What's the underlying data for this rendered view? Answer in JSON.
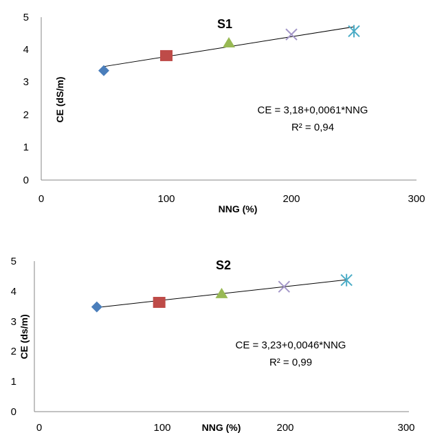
{
  "chart_data": [
    {
      "type": "scatter",
      "title": "S1",
      "xlabel": "NNG (%)",
      "ylabel": "CE (dS/m)",
      "xlim": [
        0,
        300
      ],
      "ylim": [
        0,
        5
      ],
      "xticks": [
        "0",
        "100",
        "200",
        "300"
      ],
      "yticks": [
        "0",
        "1",
        "2",
        "3",
        "4",
        "5"
      ],
      "grid": false,
      "points": [
        {
          "x": 50,
          "y": 3.36,
          "marker": "diamond",
          "color": "#4a7ebb"
        },
        {
          "x": 100,
          "y": 3.82,
          "marker": "square",
          "color": "#be4b48"
        },
        {
          "x": 150,
          "y": 4.22,
          "marker": "triangle",
          "color": "#98b954"
        },
        {
          "x": 200,
          "y": 4.47,
          "marker": "x",
          "color": "#a497c9"
        },
        {
          "x": 250,
          "y": 4.57,
          "marker": "star",
          "color": "#4bacc6"
        }
      ],
      "trendline": {
        "intercept": 3.18,
        "slope": 0.0061,
        "x_start": 50,
        "x_end": 250
      },
      "equation": "CE = 3,18+0,0061*NNG",
      "r2": "R² = 0,94"
    },
    {
      "type": "scatter",
      "title": "S2",
      "xlabel": "NNG (%)",
      "ylabel": "CE (ds/m)",
      "xlim": [
        0,
        300
      ],
      "ylim": [
        0,
        5
      ],
      "xticks": [
        "0",
        "100",
        "200",
        "300"
      ],
      "yticks": [
        "0",
        "1",
        "2",
        "3",
        "4",
        "5"
      ],
      "grid": false,
      "points": [
        {
          "x": 50,
          "y": 3.48,
          "marker": "diamond",
          "color": "#4a7ebb"
        },
        {
          "x": 100,
          "y": 3.63,
          "marker": "square",
          "color": "#be4b48"
        },
        {
          "x": 150,
          "y": 3.93,
          "marker": "triangle",
          "color": "#98b954"
        },
        {
          "x": 200,
          "y": 4.15,
          "marker": "x",
          "color": "#a497c9"
        },
        {
          "x": 250,
          "y": 4.37,
          "marker": "star",
          "color": "#4bacc6"
        }
      ],
      "trendline": {
        "intercept": 3.23,
        "slope": 0.0046,
        "x_start": 50,
        "x_end": 250
      },
      "equation": "CE = 3,23+0,0046*NNG",
      "r2": "R² = 0,99"
    }
  ]
}
